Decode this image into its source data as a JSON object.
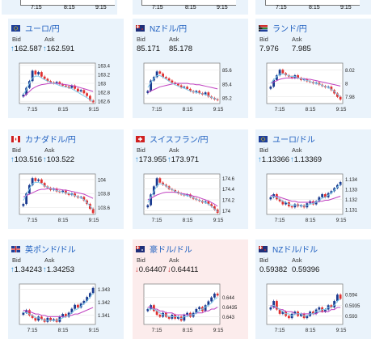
{
  "top_row": [
    {
      "x_labels": [
        "7:15",
        "8:15",
        "9:15"
      ]
    },
    {
      "x_labels": [
        "7:15",
        "8:15",
        "9:15"
      ]
    },
    {
      "x_labels": [
        "7:15",
        "8:15",
        "9:15"
      ]
    }
  ],
  "cards": [
    {
      "title": "ユーロ/円",
      "flag": "eu",
      "bid_label": "Bid",
      "ask_label": "Ask",
      "bid": "162.587",
      "ask": "162.591",
      "direction": "up",
      "chart_data": {
        "type": "candlestick",
        "x_labels": [
          "7:15",
          "8:15",
          "9:15"
        ],
        "y_ticks": [
          "163.4",
          "163.2",
          "163",
          "162.8",
          "162.6"
        ],
        "ylim": [
          162.55,
          163.45
        ],
        "candles": [
          162.75,
          162.9,
          163.05,
          163.28,
          163.2,
          163.25,
          163.15,
          163.1,
          163.05,
          163.02,
          163.0,
          163.03,
          162.98,
          162.95,
          162.93,
          162.9,
          162.95,
          162.88,
          162.82,
          162.85,
          162.78,
          162.72,
          162.62,
          162.58
        ],
        "ma1": [
          162.75,
          162.86,
          163.0,
          163.12,
          163.16,
          163.16,
          163.12,
          163.08,
          163.05,
          163.02,
          163.0,
          162.98,
          162.95,
          162.93,
          162.92,
          162.9,
          162.88,
          162.84,
          162.8,
          162.76,
          162.72,
          162.68,
          162.64,
          162.6
        ],
        "ma2": [
          162.7,
          162.76,
          162.82,
          162.88,
          162.92,
          162.95,
          162.97,
          162.98,
          162.99,
          163.0,
          163.0,
          163.0,
          162.99,
          162.98,
          162.97,
          162.96,
          162.95,
          162.94,
          162.92,
          162.9,
          162.88,
          162.86,
          162.84,
          162.82
        ]
      }
    },
    {
      "title": "NZドル/円",
      "flag": "nz",
      "bid_label": "Bid",
      "ask_label": "Ask",
      "bid": "85.171",
      "ask": "85.178",
      "direction": "none",
      "chart_data": {
        "type": "candlestick",
        "x_labels": [
          "7:15",
          "8:15",
          "9:15"
        ],
        "y_ticks": [
          "85.6",
          "85.4",
          "85.2"
        ],
        "ylim": [
          85.12,
          85.7
        ],
        "candles": [
          85.3,
          85.45,
          85.5,
          85.58,
          85.55,
          85.5,
          85.48,
          85.45,
          85.42,
          85.4,
          85.38,
          85.35,
          85.36,
          85.33,
          85.3,
          85.28,
          85.3,
          85.27,
          85.25,
          85.28,
          85.22,
          85.2,
          85.18,
          85.17
        ],
        "ma1": [
          85.35,
          85.42,
          85.48,
          85.52,
          85.52,
          85.5,
          85.47,
          85.44,
          85.41,
          85.39,
          85.37,
          85.35,
          85.34,
          85.32,
          85.3,
          85.29,
          85.28,
          85.27,
          85.26,
          85.25,
          85.23,
          85.21,
          85.19,
          85.18
        ],
        "ma2": [
          85.28,
          85.3,
          85.32,
          85.34,
          85.36,
          85.37,
          85.38,
          85.39,
          85.4,
          85.41,
          85.41,
          85.41,
          85.41,
          85.41,
          85.4,
          85.4,
          85.39,
          85.39,
          85.38,
          85.37,
          85.36,
          85.35,
          85.34,
          85.33
        ]
      }
    },
    {
      "title": "ランド/円",
      "flag": "za",
      "bid_label": "Bid",
      "ask_label": "Ask",
      "bid": "7.976",
      "ask": "7.985",
      "direction": "none",
      "chart_data": {
        "type": "candlestick",
        "x_labels": [
          "7:15",
          "8:15",
          "9:15"
        ],
        "y_ticks": [
          "8.02",
          "8",
          "7.98"
        ],
        "ylim": [
          7.97,
          8.03
        ],
        "candles": [
          7.995,
          8.005,
          8.012,
          8.02,
          8.015,
          8.012,
          8.01,
          8.008,
          8.012,
          8.008,
          8.005,
          8.006,
          8.003,
          8.002,
          8.0,
          8.001,
          7.998,
          7.996,
          7.994,
          7.995,
          7.99,
          7.985,
          7.98,
          7.976
        ],
        "ma1": [
          8.0,
          8.005,
          8.01,
          8.014,
          8.014,
          8.013,
          8.011,
          8.01,
          8.01,
          8.008,
          8.007,
          8.006,
          8.004,
          8.003,
          8.001,
          8.0,
          7.999,
          7.997,
          7.995,
          7.994,
          7.991,
          7.988,
          7.984,
          7.98
        ],
        "ma2": [
          8.0,
          8.002,
          8.004,
          8.006,
          8.007,
          8.008,
          8.008,
          8.008,
          8.008,
          8.008,
          8.007,
          8.007,
          8.006,
          8.006,
          8.005,
          8.004,
          8.003,
          8.002,
          8.001,
          8.0,
          7.999,
          7.998,
          7.997,
          7.996
        ]
      }
    },
    {
      "title": "カナダドル/円",
      "flag": "ca",
      "bid_label": "Bid",
      "ask_label": "Ask",
      "bid": "103.516",
      "ask": "103.522",
      "direction": "up",
      "chart_data": {
        "type": "candlestick",
        "x_labels": [
          "7:15",
          "8:15",
          "9:15"
        ],
        "y_ticks": [
          "104",
          "103.8",
          "103.6"
        ],
        "ylim": [
          103.5,
          104.08
        ],
        "candles": [
          103.65,
          103.8,
          103.92,
          104.02,
          103.98,
          104.0,
          103.95,
          103.9,
          103.88,
          103.85,
          103.87,
          103.83,
          103.82,
          103.84,
          103.8,
          103.78,
          103.8,
          103.76,
          103.74,
          103.75,
          103.7,
          103.65,
          103.58,
          103.52
        ],
        "ma1": [
          103.7,
          103.78,
          103.87,
          103.94,
          103.96,
          103.96,
          103.94,
          103.91,
          103.89,
          103.87,
          103.86,
          103.84,
          103.83,
          103.82,
          103.81,
          103.8,
          103.79,
          103.77,
          103.75,
          103.74,
          103.71,
          103.67,
          103.62,
          103.57
        ],
        "ma2": [
          103.75,
          103.77,
          103.79,
          103.81,
          103.83,
          103.85,
          103.86,
          103.86,
          103.87,
          103.87,
          103.87,
          103.86,
          103.86,
          103.85,
          103.85,
          103.84,
          103.83,
          103.82,
          103.81,
          103.8,
          103.79,
          103.77,
          103.75,
          103.73
        ]
      }
    },
    {
      "title": "スイスフラン/円",
      "flag": "ch",
      "bid_label": "Bid",
      "ask_label": "Ask",
      "bid": "173.955",
      "ask": "173.971",
      "direction": "up",
      "chart_data": {
        "type": "candlestick",
        "x_labels": [
          "7:15",
          "8:15",
          "9:15"
        ],
        "y_ticks": [
          "174.6",
          "174.4",
          "174.2",
          "174"
        ],
        "ylim": [
          173.93,
          174.68
        ],
        "candles": [
          174.1,
          174.3,
          174.45,
          174.6,
          174.52,
          174.48,
          174.45,
          174.4,
          174.38,
          174.35,
          174.32,
          174.3,
          174.28,
          174.3,
          174.25,
          174.22,
          174.2,
          174.18,
          174.15,
          174.17,
          174.12,
          174.08,
          174.02,
          173.96
        ],
        "ma1": [
          174.15,
          174.25,
          174.36,
          174.46,
          174.5,
          174.49,
          174.46,
          174.42,
          174.39,
          174.36,
          174.33,
          174.31,
          174.29,
          174.28,
          174.26,
          174.24,
          174.21,
          174.19,
          174.17,
          174.15,
          174.12,
          174.08,
          174.03,
          173.98
        ],
        "ma2": [
          174.2,
          174.23,
          174.26,
          174.29,
          174.31,
          174.33,
          174.34,
          174.34,
          174.34,
          174.34,
          174.33,
          174.32,
          174.31,
          174.3,
          174.29,
          174.27,
          174.26,
          174.24,
          174.22,
          174.2,
          174.18,
          174.15,
          174.12,
          174.08
        ]
      }
    },
    {
      "title": "ユーロ/ドル",
      "flag": "eu",
      "bid_label": "Bid",
      "ask_label": "Ask",
      "bid": "1.13366",
      "ask": "1.13369",
      "direction": "up",
      "chart_data": {
        "type": "candlestick",
        "x_labels": [
          "7:15",
          "8:15",
          "9:15"
        ],
        "y_ticks": [
          "1.134",
          "1.133",
          "1.132",
          "1.131"
        ],
        "ylim": [
          1.1305,
          1.1345
        ],
        "candles": [
          1.1322,
          1.1325,
          1.132,
          1.1318,
          1.1315,
          1.1317,
          1.1313,
          1.1312,
          1.1315,
          1.1313,
          1.1314,
          1.1312,
          1.1316,
          1.1318,
          1.1315,
          1.1318,
          1.1322,
          1.1325,
          1.1322,
          1.1326,
          1.1328,
          1.1331,
          1.1334,
          1.1337
        ],
        "ma1": [
          1.1322,
          1.1323,
          1.1322,
          1.132,
          1.1318,
          1.1317,
          1.1315,
          1.1314,
          1.1314,
          1.1314,
          1.1314,
          1.1313,
          1.1314,
          1.1315,
          1.1316,
          1.1317,
          1.1319,
          1.1321,
          1.1322,
          1.1324,
          1.1326,
          1.1329,
          1.1332,
          1.1335
        ],
        "ma2": [
          1.1324,
          1.1323,
          1.1323,
          1.1322,
          1.1321,
          1.132,
          1.1319,
          1.1318,
          1.1318,
          1.1317,
          1.1317,
          1.1317,
          1.1317,
          1.1317,
          1.1317,
          1.1317,
          1.1318,
          1.1318,
          1.1319,
          1.1319,
          1.132,
          1.1321,
          1.1322,
          1.1323
        ]
      }
    },
    {
      "title": "英ポンド/ドル",
      "flag": "uk",
      "bid_label": "Bid",
      "ask_label": "Ask",
      "bid": "1.34243",
      "ask": "1.34253",
      "direction": "up",
      "chart_data": {
        "type": "candlestick",
        "x_labels": [
          "7:15",
          "8:15",
          "9:15"
        ],
        "y_ticks": [
          "1.343",
          "1.342",
          "1.341"
        ],
        "ylim": [
          1.3403,
          1.3434
        ],
        "candles": [
          1.3412,
          1.3414,
          1.341,
          1.3408,
          1.3406,
          1.3409,
          1.3407,
          1.3405,
          1.3408,
          1.3406,
          1.3407,
          1.3405,
          1.3409,
          1.3411,
          1.3409,
          1.3412,
          1.3415,
          1.3418,
          1.3416,
          1.3419,
          1.3421,
          1.3424,
          1.3427,
          1.3431
        ],
        "ma1": [
          1.3412,
          1.3412,
          1.3411,
          1.341,
          1.3408,
          1.3408,
          1.3407,
          1.3406,
          1.3406,
          1.3406,
          1.3406,
          1.3406,
          1.3407,
          1.3408,
          1.3409,
          1.341,
          1.3412,
          1.3414,
          1.3415,
          1.3417,
          1.3419,
          1.3421,
          1.3424,
          1.3427
        ],
        "ma2": [
          1.3414,
          1.3413,
          1.3413,
          1.3412,
          1.3411,
          1.3411,
          1.341,
          1.341,
          1.3409,
          1.3409,
          1.3409,
          1.3409,
          1.3409,
          1.3409,
          1.3409,
          1.341,
          1.341,
          1.3411,
          1.3411,
          1.3412,
          1.3413,
          1.3414,
          1.3415,
          1.3416
        ]
      }
    },
    {
      "title": "豪ドル/ドル",
      "flag": "au",
      "bid_label": "Bid",
      "ask_label": "Ask",
      "bid": "0.64407",
      "ask": "0.64411",
      "direction": "down",
      "chart_data": {
        "type": "candlestick",
        "x_labels": [
          "7:15",
          "8:15",
          "9:15"
        ],
        "y_ticks": [
          "0.644",
          "0.6435",
          "0.643"
        ],
        "ylim": [
          0.6426,
          0.6447
        ],
        "candles": [
          0.6434,
          0.6436,
          0.6433,
          0.6431,
          0.643,
          0.6432,
          0.643,
          0.6429,
          0.6431,
          0.6429,
          0.643,
          0.6428,
          0.6431,
          0.6432,
          0.643,
          0.6432,
          0.6434,
          0.6435,
          0.6433,
          0.6436,
          0.6438,
          0.644,
          0.6442,
          0.6441
        ],
        "ma1": [
          0.6434,
          0.6434,
          0.6434,
          0.6433,
          0.6432,
          0.6431,
          0.6431,
          0.643,
          0.643,
          0.643,
          0.643,
          0.6429,
          0.643,
          0.643,
          0.6431,
          0.6431,
          0.6432,
          0.6433,
          0.6434,
          0.6435,
          0.6436,
          0.6437,
          0.6439,
          0.644
        ],
        "ma2": [
          0.6435,
          0.6435,
          0.6434,
          0.6434,
          0.6433,
          0.6433,
          0.6432,
          0.6432,
          0.6432,
          0.6431,
          0.6431,
          0.6431,
          0.6431,
          0.6431,
          0.6431,
          0.6431,
          0.6432,
          0.6432,
          0.6432,
          0.6433,
          0.6433,
          0.6434,
          0.6434,
          0.6435
        ]
      }
    },
    {
      "title": "NZドル/ドル",
      "flag": "nz",
      "bid_label": "Bid",
      "ask_label": "Ask",
      "bid": "0.59382",
      "ask": "0.59396",
      "direction": "none",
      "chart_data": {
        "type": "candlestick",
        "x_labels": [
          "7:15",
          "8:15",
          "9:15"
        ],
        "y_ticks": [
          "0.594",
          "0.5935",
          "0.593"
        ],
        "ylim": [
          0.5926,
          0.5945
        ],
        "candles": [
          0.5934,
          0.5937,
          0.5933,
          0.5931,
          0.5932,
          0.593,
          0.5929,
          0.5931,
          0.5932,
          0.593,
          0.5931,
          0.5929,
          0.593,
          0.5932,
          0.5931,
          0.5933,
          0.5934,
          0.5932,
          0.5933,
          0.5935,
          0.5934,
          0.5937,
          0.594,
          0.5938
        ],
        "ma1": [
          0.5934,
          0.5935,
          0.5934,
          0.5933,
          0.5932,
          0.5931,
          0.5931,
          0.593,
          0.5931,
          0.5931,
          0.5931,
          0.593,
          0.593,
          0.5931,
          0.5931,
          0.5932,
          0.5932,
          0.5933,
          0.5933,
          0.5934,
          0.5934,
          0.5935,
          0.5937,
          0.5938
        ],
        "ma2": [
          0.5935,
          0.5934,
          0.5934,
          0.5933,
          0.5933,
          0.5932,
          0.5932,
          0.5932,
          0.5931,
          0.5931,
          0.5931,
          0.5931,
          0.5931,
          0.5931,
          0.5931,
          0.5931,
          0.5932,
          0.5932,
          0.5932,
          0.5932,
          0.5933,
          0.5933,
          0.5934,
          0.5934
        ]
      }
    }
  ],
  "colors": {
    "up_candle": "#1a3a8f",
    "down_candle": "#e03030",
    "ma1": "#7ec8ea",
    "ma2": "#c040c0",
    "accent": "#2060c0",
    "up_arrow": "#2a8fd8",
    "down_arrow": "#d03030"
  }
}
